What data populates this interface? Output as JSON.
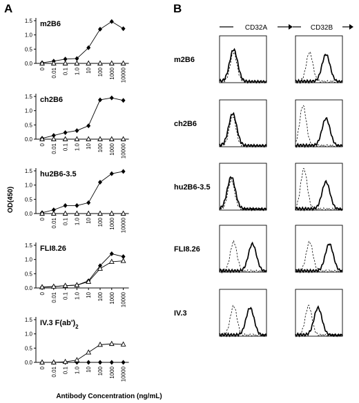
{
  "panel_a": {
    "letter": "A"
  },
  "panel_b": {
    "letter": "B"
  },
  "chart_data": [
    {
      "type": "line",
      "title": "m2B6",
      "categories": [
        "0",
        "0.01",
        "0.1",
        "1.0",
        "10",
        "100",
        "1000",
        "10000"
      ],
      "ylim": [
        0,
        1.5
      ],
      "yticks": [
        "0.0",
        "0.5",
        "1.0",
        "1.5"
      ],
      "series": [
        {
          "marker": "filled-diamond",
          "values": [
            0.02,
            0.08,
            0.15,
            0.17,
            0.55,
            1.2,
            1.47,
            1.22
          ]
        },
        {
          "marker": "open-triangle",
          "values": [
            0.0,
            0.0,
            0.0,
            0.0,
            0.0,
            0.0,
            0.0,
            0.0
          ]
        }
      ]
    },
    {
      "type": "line",
      "title": "ch2B6",
      "categories": [
        "0",
        "0.01",
        "0.1",
        "1.0",
        "10",
        "100",
        "1000",
        "10000"
      ],
      "ylim": [
        0,
        1.5
      ],
      "yticks": [
        "0.0",
        "0.5",
        "1.0",
        "1.5"
      ],
      "series": [
        {
          "marker": "filled-diamond",
          "values": [
            0.03,
            0.13,
            0.23,
            0.3,
            0.47,
            1.38,
            1.45,
            1.36
          ]
        },
        {
          "marker": "open-triangle",
          "values": [
            0.0,
            0.0,
            0.0,
            0.0,
            0.0,
            0.0,
            0.0,
            0.0
          ]
        }
      ]
    },
    {
      "type": "line",
      "title": "hu2B6-3.5",
      "categories": [
        "0",
        "0.01",
        "0.1",
        "1.0",
        "10",
        "100",
        "1000",
        "10000"
      ],
      "ylim": [
        0,
        1.5
      ],
      "yticks": [
        "0.0",
        "0.5",
        "1.0",
        "1.5"
      ],
      "series": [
        {
          "marker": "filled-diamond",
          "values": [
            0.03,
            0.13,
            0.28,
            0.28,
            0.38,
            1.1,
            1.4,
            1.48
          ]
        },
        {
          "marker": "open-triangle",
          "values": [
            0.0,
            0.0,
            0.0,
            0.0,
            0.0,
            0.0,
            0.0,
            0.0
          ]
        }
      ]
    },
    {
      "type": "line",
      "title": "FLI8.26",
      "categories": [
        "0",
        "0.01",
        "0.1",
        "1.0",
        "10",
        "100",
        "1000",
        "10000"
      ],
      "ylim": [
        0,
        1.5
      ],
      "yticks": [
        "0.0",
        "0.5",
        "1.0",
        "1.5"
      ],
      "series": [
        {
          "marker": "filled-diamond",
          "values": [
            0.03,
            0.05,
            0.08,
            0.1,
            0.25,
            0.78,
            1.2,
            1.1
          ]
        },
        {
          "marker": "open-triangle",
          "values": [
            0.03,
            0.05,
            0.08,
            0.1,
            0.22,
            0.68,
            0.92,
            0.95
          ]
        }
      ]
    },
    {
      "type": "line",
      "title": "IV.3 F(ab')",
      "title_subscript": "2",
      "categories": [
        "0",
        "0.01",
        "0.1",
        "1.0",
        "10",
        "100",
        "1000",
        "10000"
      ],
      "ylim": [
        0,
        1.5
      ],
      "yticks": [
        "0.0",
        "0.5",
        "1.0",
        "1.5"
      ],
      "series": [
        {
          "marker": "filled-diamond",
          "values": [
            0.0,
            0.0,
            0.0,
            0.0,
            0.0,
            0.0,
            0.0,
            0.0
          ]
        },
        {
          "marker": "open-triangle",
          "values": [
            0.0,
            0.0,
            0.02,
            0.08,
            0.35,
            0.62,
            0.65,
            0.63
          ]
        }
      ]
    }
  ],
  "y_axis_title": "OD(450)",
  "x_axis_title": "Antibody Concentration (ng/mL)",
  "flow": {
    "col_headers": [
      "CD32A",
      "CD32B"
    ],
    "rows": [
      {
        "label": "m2B6",
        "cd32a": {
          "dashed": 0.3,
          "solid": 0.3
        },
        "cd32b": {
          "dashed": 0.3,
          "solid": 0.65
        }
      },
      {
        "label": "ch2B6",
        "cd32a": {
          "dashed": 0.28,
          "solid": 0.28
        },
        "cd32b": {
          "dashed": 0.16,
          "solid": 0.65
        }
      },
      {
        "label": "hu2B6-3.5",
        "cd32a": {
          "dashed": 0.25,
          "solid": 0.25
        },
        "cd32b": {
          "dashed": 0.18,
          "solid": 0.65
        }
      },
      {
        "label": "FLI8.26",
        "cd32a": {
          "dashed": 0.3,
          "solid": 0.7
        },
        "cd32b": {
          "dashed": 0.3,
          "solid": 0.72
        }
      },
      {
        "label": "IV.3",
        "cd32a": {
          "dashed": 0.3,
          "solid": 0.65
        },
        "cd32b": {
          "dashed": 0.28,
          "solid": 0.48
        }
      }
    ]
  }
}
